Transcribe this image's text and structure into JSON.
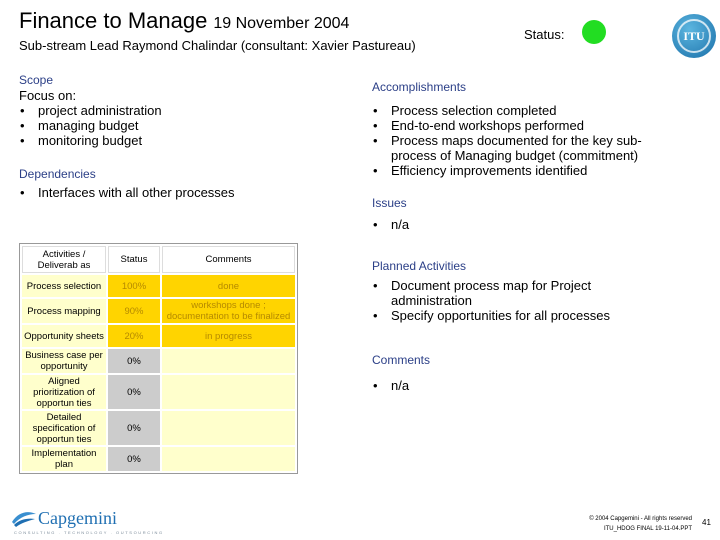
{
  "header": {
    "title": "Finance to Manage",
    "date": "19 November 2004",
    "subtitle": "Sub-stream Lead Raymond Chalindar (consultant: Xavier Pastureau)",
    "status_label": "Status:",
    "status_color": "#22dd22",
    "logo_text": "ITU"
  },
  "scope": {
    "heading": "Scope",
    "intro": "Focus on:",
    "items": [
      "project administration",
      "managing budget",
      "monitoring budget"
    ]
  },
  "dependencies": {
    "heading": "Dependencies",
    "items": [
      "Interfaces with all other processes"
    ]
  },
  "activities_table": {
    "headers": [
      "Activities / Deliverab as",
      "Status",
      "Comments"
    ],
    "rows": [
      {
        "activity": "Process selection",
        "status": "100%",
        "comment": "done"
      },
      {
        "activity": "Process mapping",
        "status": "90%",
        "comment": "workshops done ; documentation to be finalized"
      },
      {
        "activity": "Opportunity sheets",
        "status": "20%",
        "comment": "in progress"
      },
      {
        "activity": "Business case per opportunity",
        "status": "0%",
        "comment": ""
      },
      {
        "activity": "Aligned prioritization of opportun ties",
        "status": "0%",
        "comment": ""
      },
      {
        "activity": "Detailed specification of opportun ties",
        "status": "0%",
        "comment": ""
      },
      {
        "activity": "Implementation plan",
        "status": "0%",
        "comment": ""
      }
    ]
  },
  "accomplishments": {
    "heading": "Accomplishments",
    "items": [
      "Process selection completed",
      "End-to-end workshops performed",
      "Process maps documented for the key sub-process of Managing budget (commitment)",
      "Efficiency improvements identified"
    ]
  },
  "issues": {
    "heading": "Issues",
    "items": [
      "n/a"
    ]
  },
  "planned_activities": {
    "heading": "Planned Activities",
    "items": [
      "Document process map for Project administration",
      "Specify opportunities for all processes"
    ]
  },
  "comments": {
    "heading": "Comments",
    "items": [
      "n/a"
    ]
  },
  "footer": {
    "brand": "Capgemini",
    "tagline": "CONSULTING . TECHNOLOGY . OUTSOURCING",
    "copyright": "© 2004 Capgemini - All rights reserved",
    "file": "ITU_HDOG FINAL 19-11-04.PPT",
    "page_number": "41"
  }
}
